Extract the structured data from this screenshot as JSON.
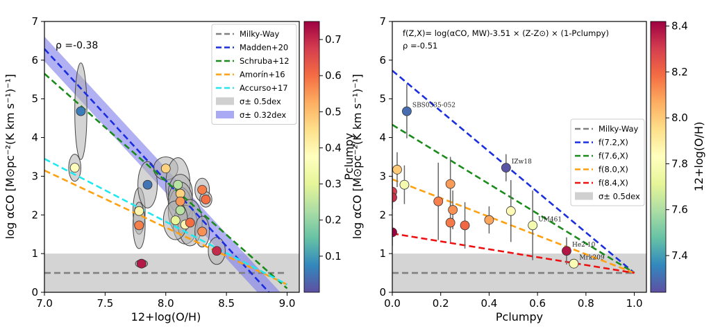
{
  "chart_data": [
    {
      "type": "scatter",
      "xlabel": "12+log(O/H)",
      "ylabel": "log αCO [M⊙pc⁻²(K km s⁻¹)⁻¹]",
      "xlim": [
        7.0,
        9.1
      ],
      "ylim": [
        0,
        7
      ],
      "xticks": [
        "7.0",
        "7.5",
        "8.0",
        "8.5",
        "9.0"
      ],
      "yticks": [
        "0",
        "1",
        "2",
        "3",
        "4",
        "5",
        "6",
        "7"
      ],
      "annotation": "ρ =-0.38",
      "colorbar": {
        "label": "Pclumpy",
        "range": [
          0.0,
          0.75
        ],
        "ticks": [
          "0.1",
          "0.2",
          "0.3",
          "0.4",
          "0.5",
          "0.6",
          "0.7"
        ]
      },
      "legend": {
        "placement": "top-right",
        "entries": [
          {
            "label": "Milky-Way",
            "color": "#808080",
            "style": "dashed"
          },
          {
            "label": "Madden+20",
            "color": "#1a2ee0",
            "style": "dashed"
          },
          {
            "label": "Schruba+12",
            "color": "#1a8a1a",
            "style": "dashed"
          },
          {
            "label": "Amorín+16",
            "color": "#ffa010",
            "style": "dashed"
          },
          {
            "label": "Accurso+17",
            "color": "#20e8f0",
            "style": "dashed"
          },
          {
            "label": "σ± 0.5dex",
            "color": "#d0d0d0",
            "style": "band"
          },
          {
            "label": "σ± 0.32dex",
            "color": "#8c8cf0",
            "style": "band"
          }
        ]
      },
      "bands": [
        {
          "name": "σ± 0.5dex",
          "y": [
            0,
            1
          ]
        },
        {
          "name": "σ± 0.32dex",
          "center_line": [
            [
              7.0,
              6.29
            ],
            [
              8.85,
              0.0
            ]
          ],
          "halfwidth": 0.32
        }
      ],
      "lines": [
        {
          "name": "Milky-Way",
          "x": [
            7.0,
            9.0
          ],
          "y": [
            0.5,
            0.5
          ]
        },
        {
          "name": "Madden+20",
          "x": [
            7.0,
            8.85
          ],
          "y": [
            6.29,
            0.0
          ]
        },
        {
          "name": "Schruba+12",
          "x": [
            7.0,
            9.0
          ],
          "y": [
            5.65,
            0.1
          ]
        },
        {
          "name": "Amorín+16",
          "x": [
            7.0,
            9.0
          ],
          "y": [
            3.15,
            0.2
          ]
        },
        {
          "name": "Accurso+17",
          "x": [
            7.0,
            9.0
          ],
          "y": [
            3.45,
            0.2
          ]
        }
      ],
      "points": [
        {
          "x": 7.3,
          "y": 4.68,
          "c": 0.06,
          "ex": 0.05,
          "ey": 1.25
        },
        {
          "x": 7.25,
          "y": 3.22,
          "c": 0.38,
          "ex": 0.05,
          "ey": 0.35
        },
        {
          "x": 7.78,
          "y": 2.1,
          "c": 0.4,
          "ex": 0.05,
          "ey": 0.6
        },
        {
          "x": 7.78,
          "y": 1.73,
          "c": 0.58,
          "ex": 0.05,
          "ey": 0.6
        },
        {
          "x": 7.8,
          "y": 0.74,
          "c": 0.72,
          "ex": 0.05,
          "ey": 0.1
        },
        {
          "x": 7.85,
          "y": 2.78,
          "c": 0.05,
          "ex": 0.08,
          "ey": 0.6
        },
        {
          "x": 8.0,
          "y": 3.2,
          "c": 0.47,
          "ex": 0.1,
          "ey": 0.3
        },
        {
          "x": 8.1,
          "y": 2.78,
          "c": 0.24,
          "ex": 0.1,
          "ey": 0.7
        },
        {
          "x": 8.12,
          "y": 2.55,
          "c": 0.47,
          "ex": 0.1,
          "ey": 0.5
        },
        {
          "x": 8.12,
          "y": 2.12,
          "c": 0.24,
          "ex": 0.1,
          "ey": 0.6
        },
        {
          "x": 8.12,
          "y": 2.35,
          "c": 0.55,
          "ex": 0.1,
          "ey": 0.5
        },
        {
          "x": 8.16,
          "y": 1.75,
          "c": 0.4,
          "ex": 0.1,
          "ey": 0.5
        },
        {
          "x": 8.2,
          "y": 1.8,
          "c": 0.6,
          "ex": 0.1,
          "ey": 0.6
        },
        {
          "x": 8.08,
          "y": 1.86,
          "c": 0.3,
          "ex": 0.1,
          "ey": 0.5
        },
        {
          "x": 8.3,
          "y": 2.65,
          "c": 0.58,
          "ex": 0.06,
          "ey": 0.3
        },
        {
          "x": 8.33,
          "y": 2.4,
          "c": 0.6,
          "ex": 0.05,
          "ey": 0.2
        },
        {
          "x": 8.3,
          "y": 1.57,
          "c": 0.56,
          "ex": 0.06,
          "ey": 0.4
        },
        {
          "x": 8.42,
          "y": 1.07,
          "c": 0.7,
          "ex": 0.07,
          "ey": 0.35
        }
      ]
    },
    {
      "type": "scatter",
      "xlabel": "Pclumpy",
      "ylabel": "log αCO [M⊙pc⁻²(K km s⁻¹)⁻¹]",
      "xlim": [
        0,
        1.05
      ],
      "ylim": [
        0,
        7
      ],
      "xticks": [
        "0.0",
        "0.2",
        "0.4",
        "0.6",
        "0.8",
        "1.0"
      ],
      "yticks": [
        "0",
        "1",
        "2",
        "3",
        "4",
        "5",
        "6",
        "7"
      ],
      "annotation_line1": "f(Z,X)= log(αCO, MW)-3.51 × (Z-Z⊙) × (1-Pclumpy)",
      "annotation_line2": "ρ =-0.51",
      "colorbar": {
        "label": "12+log(O/H)",
        "range": [
          7.24,
          8.42
        ],
        "ticks": [
          "7.4",
          "7.6",
          "7.8",
          "8.0",
          "8.2",
          "8.4"
        ]
      },
      "legend": {
        "placement": "center-right",
        "entries": [
          {
            "label": "Milky-Way",
            "color": "#808080",
            "style": "dashed"
          },
          {
            "label": "f(7.2,X)",
            "color": "#1a2ee0",
            "style": "dashed"
          },
          {
            "label": "f(7.6,X)",
            "color": "#1a8a1a",
            "style": "dashed"
          },
          {
            "label": "f(8.0,X)",
            "color": "#ffa010",
            "style": "dashed"
          },
          {
            "label": "f(8.4,X)",
            "color": "#ee1111",
            "style": "dashed"
          },
          {
            "label": "σ± 0.5dex",
            "color": "#d0d0d0",
            "style": "band"
          }
        ]
      },
      "lines": [
        {
          "name": "Milky-Way",
          "x": [
            0,
            1
          ],
          "y": [
            0.5,
            0.5
          ]
        },
        {
          "name": "f(7.2,X)",
          "x": [
            0,
            1
          ],
          "y": [
            5.73,
            0.5
          ]
        },
        {
          "name": "f(7.6,X)",
          "x": [
            0,
            1
          ],
          "y": [
            4.33,
            0.5
          ]
        },
        {
          "name": "f(8.0,X)",
          "x": [
            0,
            1
          ],
          "y": [
            2.92,
            0.5
          ]
        },
        {
          "name": "f(8.4,X)",
          "x": [
            0,
            1
          ],
          "y": [
            1.52,
            0.5
          ]
        }
      ],
      "points": [
        {
          "x": 0.06,
          "y": 4.68,
          "z": 7.3,
          "ey": 0.7,
          "label": "SBS0335-052"
        },
        {
          "x": 0.47,
          "y": 3.22,
          "z": 7.25,
          "ey": 0.35,
          "label": "IZw18"
        },
        {
          "x": 0.02,
          "y": 3.17,
          "z": 8.0,
          "ey": 0.45
        },
        {
          "x": 0.05,
          "y": 2.78,
          "z": 7.78,
          "ey": 0.5
        },
        {
          "x": 0.0,
          "y": 2.6,
          "z": 8.3,
          "ey": 0.45
        },
        {
          "x": 0.0,
          "y": 2.45,
          "z": 8.33,
          "ey": 0.3
        },
        {
          "x": 0.0,
          "y": 1.55,
          "z": 8.42,
          "ey": 0.35
        },
        {
          "x": 0.19,
          "y": 2.35,
          "z": 8.15,
          "ey": 1.0
        },
        {
          "x": 0.24,
          "y": 2.8,
          "z": 8.1,
          "ey": 0.7
        },
        {
          "x": 0.25,
          "y": 2.13,
          "z": 8.12,
          "ey": 0.5
        },
        {
          "x": 0.24,
          "y": 1.8,
          "z": 8.16,
          "ey": 0.5
        },
        {
          "x": 0.3,
          "y": 1.73,
          "z": 8.2,
          "ey": 0.6
        },
        {
          "x": 0.4,
          "y": 1.87,
          "z": 8.08,
          "ey": 0.35
        },
        {
          "x": 0.49,
          "y": 2.1,
          "z": 7.85,
          "ey": 0.8
        },
        {
          "x": 0.58,
          "y": 1.73,
          "z": 7.78,
          "ey": 0.9,
          "label": "UM461"
        },
        {
          "x": 0.72,
          "y": 1.07,
          "z": 8.38,
          "ey": 0.35,
          "label": "He2-10"
        },
        {
          "x": 0.75,
          "y": 0.74,
          "z": 7.8,
          "ey": 0.1,
          "label": "Mrk209"
        }
      ]
    }
  ]
}
